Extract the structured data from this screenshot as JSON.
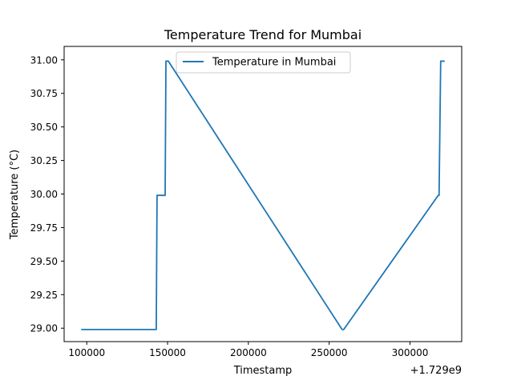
{
  "chart_data": {
    "type": "line",
    "title": "Temperature Trend for Mumbai",
    "xlabel": "Timestamp",
    "ylabel": "Temperature (°C)",
    "x_offset_label": "+1.729e9",
    "xlim": [
      86000,
      332000
    ],
    "ylim": [
      28.9,
      31.1
    ],
    "x_ticks": [
      100000,
      150000,
      200000,
      250000,
      300000
    ],
    "x_tick_labels": [
      "100000",
      "150000",
      "200000",
      "250000",
      "300000"
    ],
    "y_ticks": [
      29.0,
      29.25,
      29.5,
      29.75,
      30.0,
      30.25,
      30.5,
      30.75,
      31.0
    ],
    "y_tick_labels": [
      "29.00",
      "29.25",
      "29.50",
      "29.75",
      "30.00",
      "30.25",
      "30.50",
      "30.75",
      "31.00"
    ],
    "grid": false,
    "legend_position": "top-center",
    "series": [
      {
        "name": "Temperature in Mumbai",
        "color": "#1f77b4",
        "x": [
          97000,
          143000,
          143500,
          148500,
          149000,
          150500,
          258000,
          259000,
          317500,
          318000,
          319000,
          321000
        ],
        "y": [
          28.99,
          28.99,
          29.99,
          29.99,
          30.99,
          30.99,
          28.99,
          28.99,
          29.99,
          29.99,
          30.99,
          30.99
        ]
      }
    ]
  }
}
